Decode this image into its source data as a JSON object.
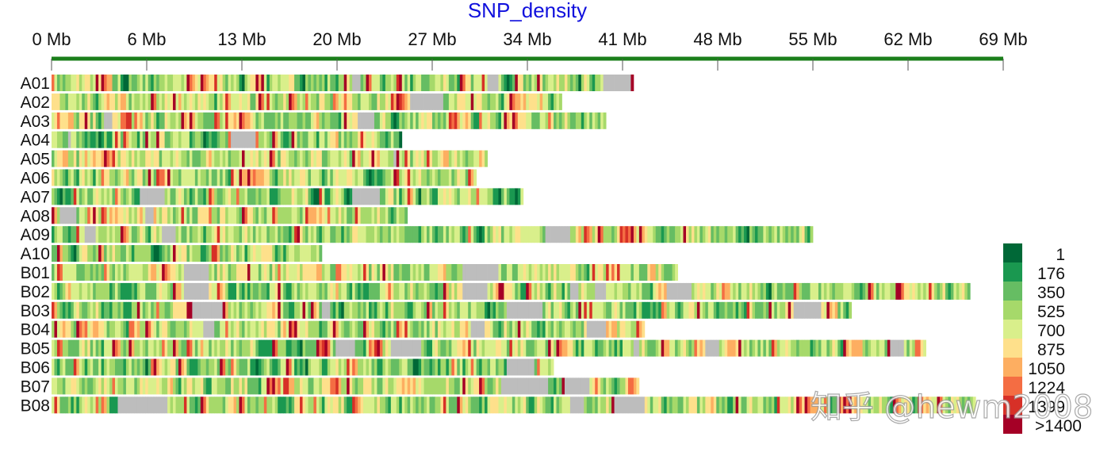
{
  "chart_data": {
    "type": "heatmap",
    "title": "SNP_density",
    "x_ticks": [
      "0 Mb",
      "6 Mb",
      "13 Mb",
      "20 Mb",
      "27 Mb",
      "34 Mb",
      "41 Mb",
      "48 Mb",
      "55 Mb",
      "62 Mb",
      "69 Mb"
    ],
    "xlim_mb": [
      0,
      69
    ],
    "bin_mb": 0.2,
    "chromosomes": [
      {
        "name": "A01",
        "length_mb": 42.2,
        "gaps_mb": [
          [
            21.7,
            22.3
          ],
          [
            31.6,
            32.4
          ],
          [
            39.9,
            42.0
          ]
        ]
      },
      {
        "name": "A02",
        "length_mb": 37.0,
        "gaps_mb": [
          [
            25.9,
            28.4
          ]
        ]
      },
      {
        "name": "A03",
        "length_mb": 40.2,
        "gaps_mb": [
          [
            3.8,
            4.4
          ],
          [
            22.2,
            23.3
          ]
        ]
      },
      {
        "name": "A04",
        "length_mb": 25.4,
        "gaps_mb": [
          [
            1.1,
            1.4
          ],
          [
            12.9,
            14.8
          ]
        ]
      },
      {
        "name": "A05",
        "length_mb": 31.5,
        "gaps_mb": [
          [
            24.8,
            25.0
          ]
        ]
      },
      {
        "name": "A06",
        "length_mb": 30.8,
        "gaps_mb": []
      },
      {
        "name": "A07",
        "length_mb": 34.3,
        "gaps_mb": [
          [
            6.3,
            8.1
          ],
          [
            21.8,
            23.8
          ]
        ]
      },
      {
        "name": "A08",
        "length_mb": 25.7,
        "gaps_mb": [
          [
            0.6,
            1.7
          ],
          [
            6.7,
            7.4
          ]
        ]
      },
      {
        "name": "A09",
        "length_mb": 55.2,
        "gaps_mb": [
          [
            2.3,
            3.1
          ],
          [
            7.9,
            9.0
          ],
          [
            35.7,
            37.5
          ]
        ]
      },
      {
        "name": "A10",
        "length_mb": 19.6,
        "gaps_mb": []
      },
      {
        "name": "B01",
        "length_mb": 45.4,
        "gaps_mb": [
          [
            9.6,
            11.4
          ],
          [
            29.8,
            32.4
          ]
        ]
      },
      {
        "name": "B02",
        "length_mb": 66.5,
        "gaps_mb": [
          [
            9.6,
            11.4
          ],
          [
            29.8,
            31.5
          ],
          [
            37.6,
            38.2
          ],
          [
            39.4,
            40.1
          ],
          [
            44.6,
            46.4
          ]
        ]
      },
      {
        "name": "B03",
        "length_mb": 58.0,
        "gaps_mb": [
          [
            10.1,
            12.3
          ],
          [
            19.5,
            20.1
          ],
          [
            33.0,
            35.6
          ],
          [
            53.7,
            55.8
          ]
        ]
      },
      {
        "name": "B04",
        "length_mb": 43.0,
        "gaps_mb": [
          [
            10.9,
            11.8
          ],
          [
            30.3,
            31.4
          ],
          [
            38.7,
            40.1
          ]
        ]
      },
      {
        "name": "B05",
        "length_mb": 63.4,
        "gaps_mb": [
          [
            20.5,
            21.9
          ],
          [
            24.6,
            26.7
          ],
          [
            42.1,
            42.5
          ],
          [
            47.3,
            48.3
          ],
          [
            60.7,
            61.7
          ]
        ]
      },
      {
        "name": "B06",
        "length_mb": 36.4,
        "gaps_mb": [
          [
            33.0,
            35.0
          ]
        ]
      },
      {
        "name": "B07",
        "length_mb": 42.6,
        "gaps_mb": [
          [
            32.6,
            35.9
          ],
          [
            37.2,
            38.9
          ]
        ]
      },
      {
        "name": "B08",
        "length_mb": 67.0,
        "gaps_mb": [
          [
            4.7,
            8.3
          ],
          [
            37.5,
            38.5
          ],
          [
            40.8,
            43.0
          ]
        ]
      }
    ],
    "gap_color": "#bdbdbd",
    "axis_color": "#1a7f1a",
    "legend": {
      "labels": [
        "1",
        "176",
        "350",
        "525",
        "700",
        "875",
        "1050",
        "1224",
        "1399",
        ">1400"
      ],
      "colors": [
        "#006837",
        "#1a9850",
        "#66bd63",
        "#a6d96a",
        "#d9ef8b",
        "#fee08b",
        "#fdae61",
        "#f46d43",
        "#d73027",
        "#a50026"
      ]
    }
  },
  "watermark": "知乎 @hewm2008"
}
